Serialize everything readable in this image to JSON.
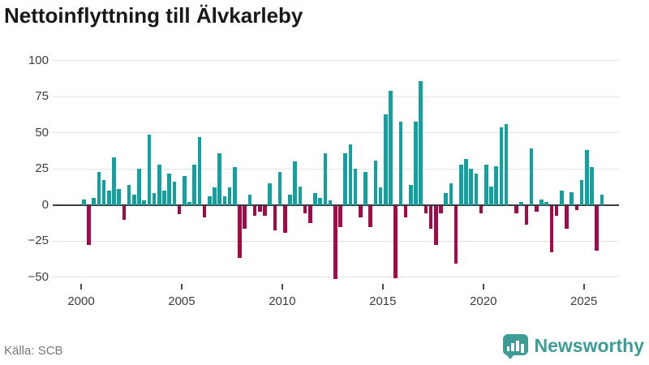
{
  "title": "Nettoinflyttning till Älvkarleby",
  "source_label": "Källa: SCB",
  "logo": {
    "text": "Newsworthy"
  },
  "colors": {
    "positive_bar": "#12a19e",
    "negative_bar": "#a30a47",
    "grid": "#e3e3e3",
    "zero_line": "#3b3b3b",
    "axis_text": "#3c3c3c",
    "title_text": "#191919",
    "source_text": "#787878",
    "logo_teal": "#3d9d96"
  },
  "chart_data": {
    "type": "bar",
    "title": "Nettoinflyttning till Älvkarleby",
    "xlabel": "",
    "ylabel": "",
    "grid": true,
    "y_ticks": [
      100,
      75,
      50,
      25,
      0,
      -25,
      -50
    ],
    "ylim": [
      -57,
      108
    ],
    "x_tick_labels": [
      "2000",
      "2005",
      "2010",
      "2015",
      "2020",
      "2025"
    ],
    "start_period": "2000Q1",
    "end_period": "2025Q4",
    "periods_per_year": 4,
    "values": [
      4,
      -27,
      5,
      23,
      17,
      10,
      33,
      11,
      -10,
      14,
      7,
      25,
      3,
      49,
      8,
      28,
      10,
      22,
      16,
      -6,
      20,
      2,
      28,
      47,
      -8,
      6,
      12,
      36,
      6,
      12,
      26,
      -36,
      -16,
      7,
      -7,
      -4,
      -7,
      15,
      -17,
      23,
      -19,
      7,
      30,
      13,
      -5,
      -12,
      8,
      5,
      36,
      3,
      -51,
      -15,
      36,
      42,
      25,
      -8,
      23,
      -15,
      31,
      12,
      63,
      79,
      -50,
      58,
      -8,
      14,
      58,
      86,
      -5,
      -16,
      -27,
      -5,
      8,
      15,
      -40,
      28,
      32,
      25,
      22,
      -5,
      28,
      13,
      27,
      54,
      56,
      0,
      -5,
      2,
      -13,
      39,
      -4,
      4,
      2,
      -32,
      -7,
      10,
      -16,
      9,
      -3,
      17,
      38,
      26,
      -31,
      7
    ]
  }
}
